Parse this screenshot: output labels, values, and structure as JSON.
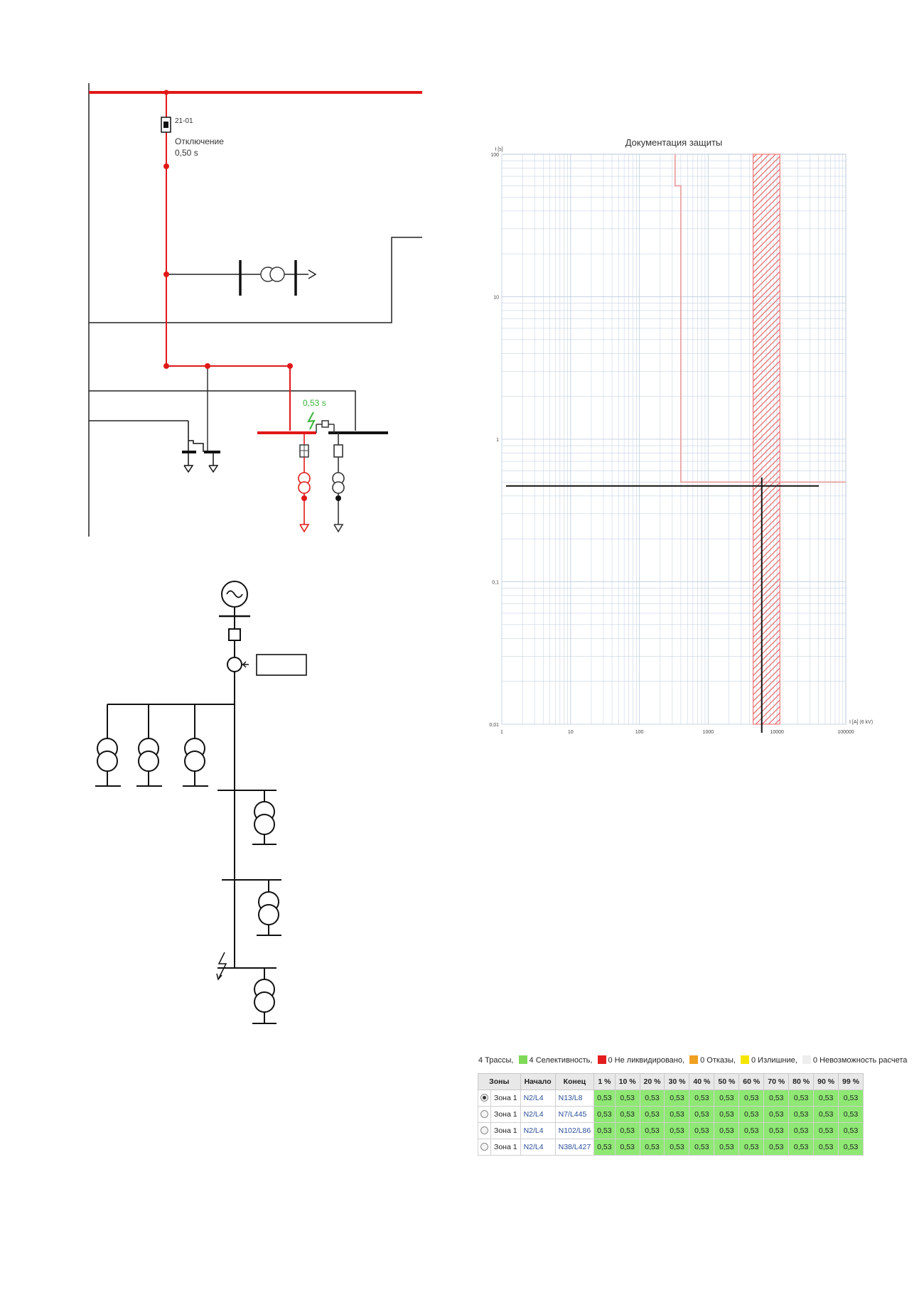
{
  "diagram1": {
    "breaker_id": "21-01",
    "trip_label": "Отключение",
    "trip_time": "0,50 s",
    "fault_time": "0,53 s"
  },
  "chart_data": {
    "type": "line",
    "title": "Документация защиты",
    "ylabel": "t [s]",
    "xlabel": "I [A] (6 kV)",
    "xscale": "log",
    "yscale": "log",
    "xlim": [
      1,
      100000
    ],
    "ylim": [
      0.01,
      100
    ],
    "x_ticks": [
      "1",
      "10",
      "100",
      "1000",
      "10000",
      "100000"
    ],
    "y_ticks": [
      "100",
      "10",
      "1",
      "0,1",
      "0,01"
    ],
    "series": [
      {
        "x": [
          330,
          330,
          400,
          400,
          100000
        ],
        "y": [
          100,
          60,
          60,
          0.5,
          0.5
        ]
      }
    ],
    "hatched_band_x": [
      4500,
      11000
    ],
    "crosshair": {
      "x": 6000,
      "y": 0.47
    },
    "colors": {
      "curve": "#e89a9a",
      "hatch": "#e86060",
      "grid": "#c8d4e4"
    }
  },
  "legend": {
    "routes": "4 Трассы,",
    "selectivity": "4 Селективность,",
    "not_cleared": "0 Не ликвидировано,",
    "failures": "0 Отказы,",
    "redundant": "0 Излишние,",
    "impossible": "0 Невозможность расчета",
    "colors": {
      "selectivity": "#7ed957",
      "not_cleared": "#e41e1e",
      "failures": "#f0a020",
      "redundant": "#f5e600",
      "impossible": "#eeeeee"
    }
  },
  "table": {
    "headers": [
      "Зоны",
      "Начало",
      "Конец",
      "1 %",
      "10 %",
      "20 %",
      "30 %",
      "40 %",
      "50 %",
      "60 %",
      "70 %",
      "80 %",
      "90 %",
      "99 %"
    ],
    "rows": [
      {
        "zone": "Зона 1",
        "start": "N2/L4",
        "end": "N13/L8",
        "selected": true,
        "values": [
          "0,53",
          "0,53",
          "0,53",
          "0,53",
          "0,53",
          "0,53",
          "0,53",
          "0,53",
          "0,53",
          "0,53",
          "0,53"
        ]
      },
      {
        "zone": "Зона 1",
        "start": "N2/L4",
        "end": "N7/L445",
        "selected": false,
        "values": [
          "0,53",
          "0,53",
          "0,53",
          "0,53",
          "0,53",
          "0,53",
          "0,53",
          "0,53",
          "0,53",
          "0,53",
          "0,53"
        ]
      },
      {
        "zone": "Зона 1",
        "start": "N2/L4",
        "end": "N102/L86",
        "selected": false,
        "values": [
          "0,53",
          "0,53",
          "0,53",
          "0,53",
          "0,53",
          "0,53",
          "0,53",
          "0,53",
          "0,53",
          "0,53",
          "0,53"
        ]
      },
      {
        "zone": "Зона 1",
        "start": "N2/L4",
        "end": "N38/L427",
        "selected": false,
        "values": [
          "0,53",
          "0,53",
          "0,53",
          "0,53",
          "0,53",
          "0,53",
          "0,53",
          "0,53",
          "0,53",
          "0,53",
          "0,53"
        ]
      }
    ]
  }
}
